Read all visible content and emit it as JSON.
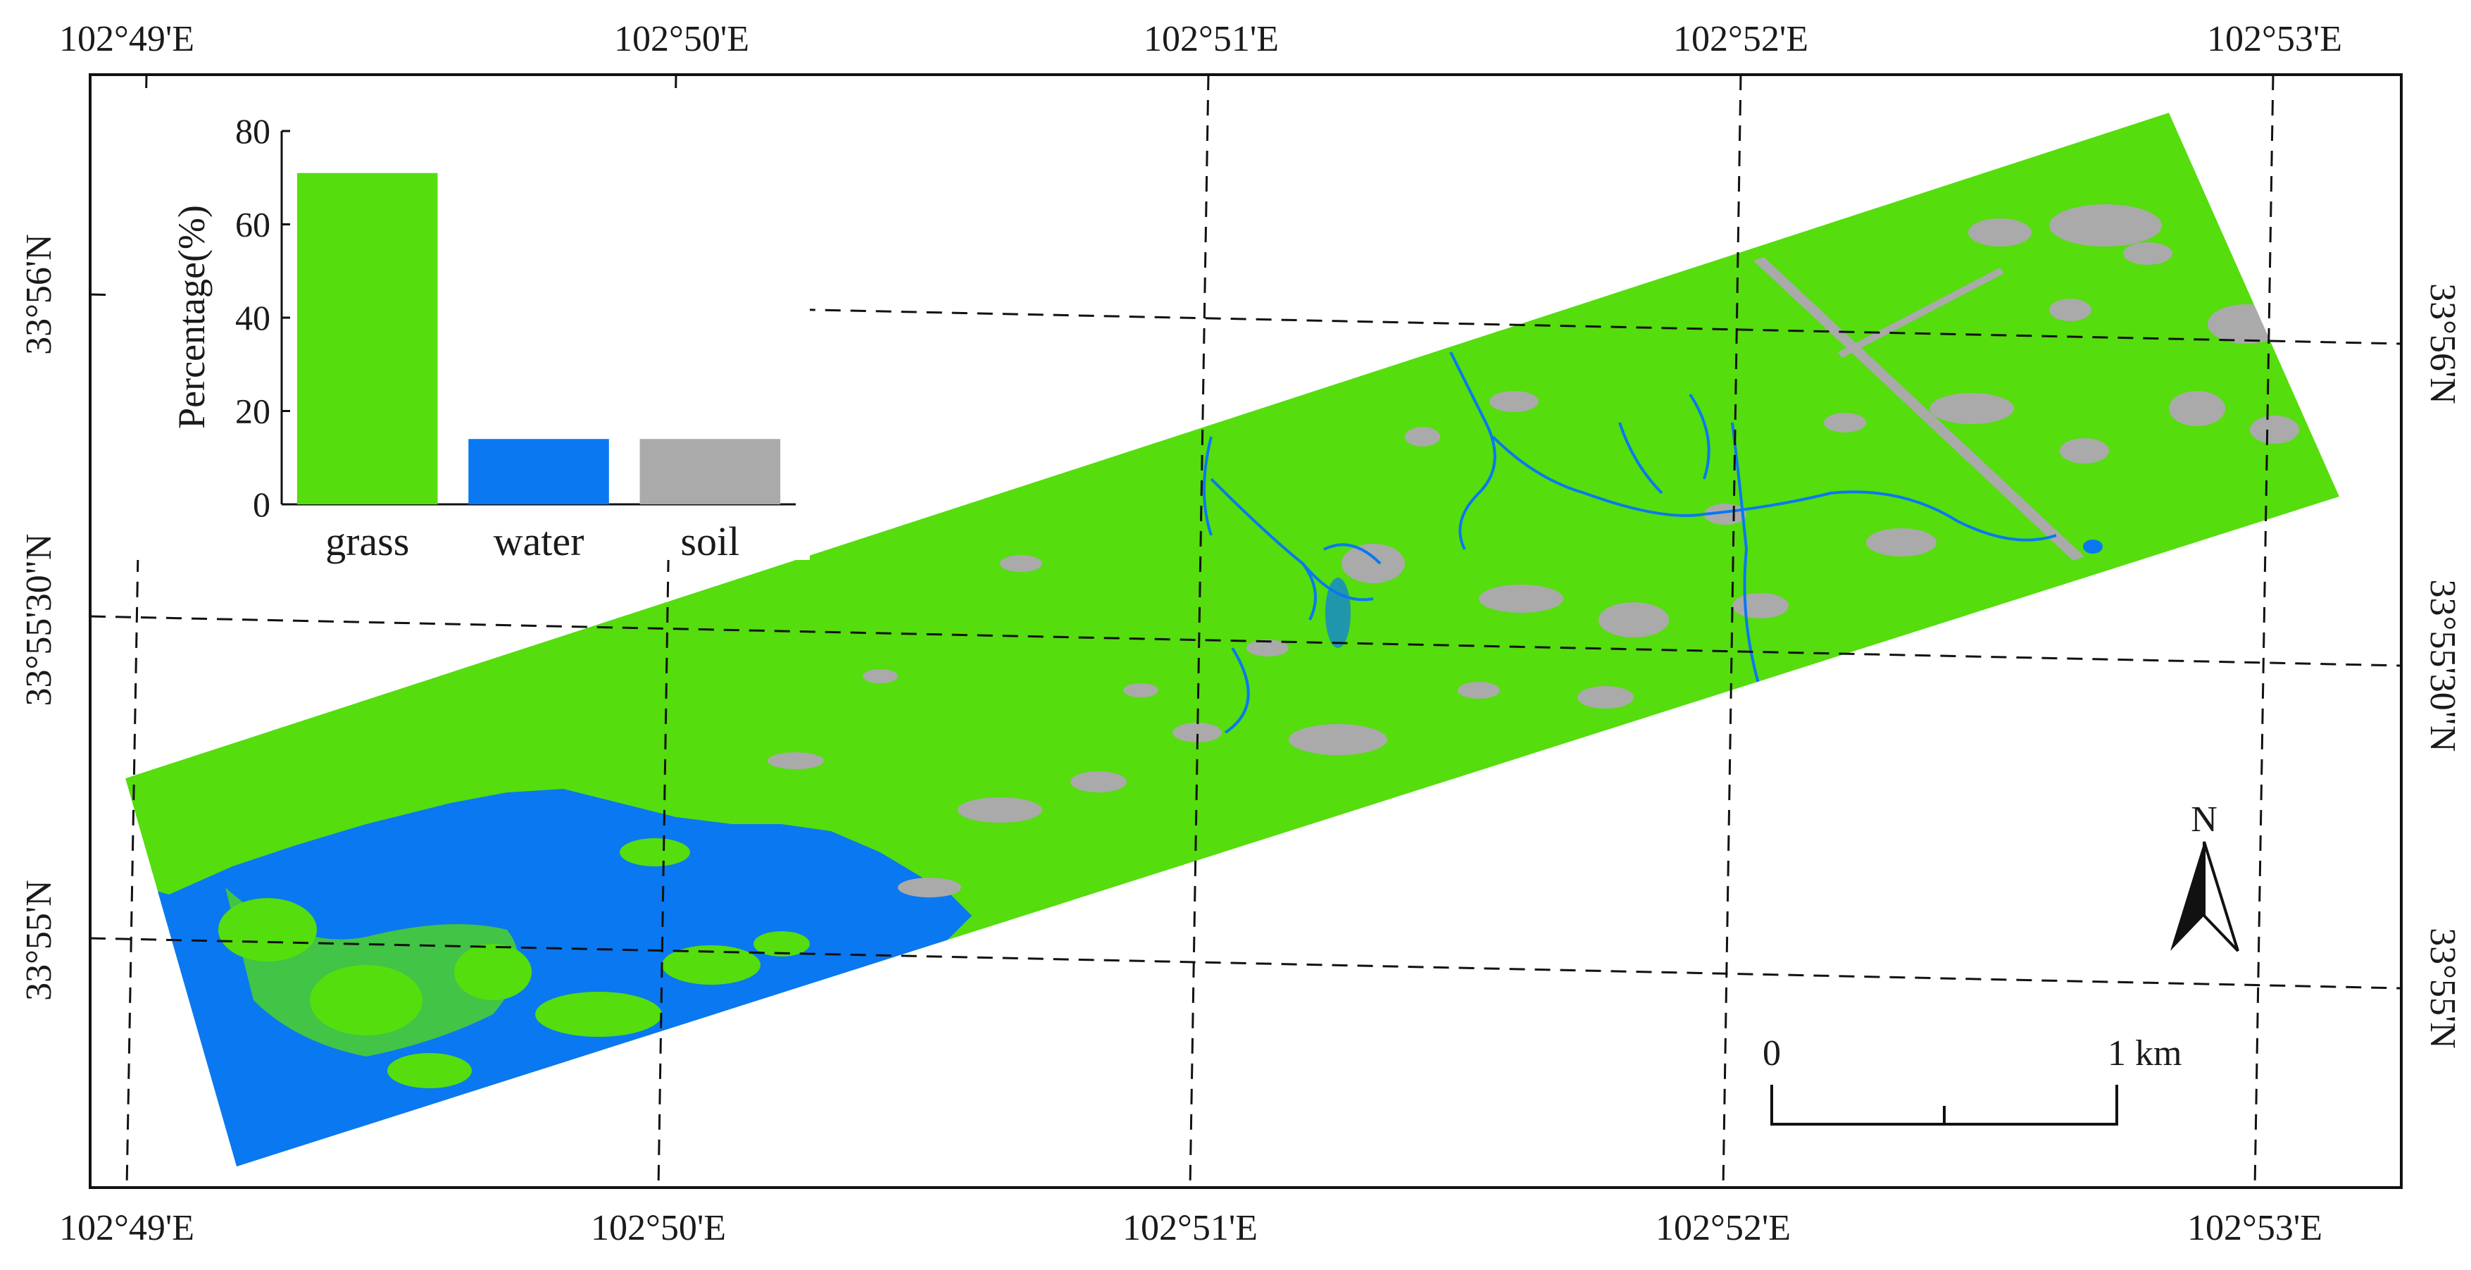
{
  "map": {
    "top_lon_labels": [
      "102°49'E",
      "102°50'E",
      "102°51'E",
      "102°52'E",
      "102°53'E"
    ],
    "bottom_lon_labels": [
      "102°49'E",
      "102°50'E",
      "102°51'E",
      "102°52'E",
      "102°53'E"
    ],
    "left_lat_labels": [
      "33°56'N",
      "33°55'30\"N",
      "33°55'N"
    ],
    "right_lat_labels": [
      "33°56'N",
      "33°55'30\"N",
      "33°55'N"
    ],
    "colors": {
      "grass": "#55dd0e",
      "water": "#0a78f0",
      "soil": "#aaaaaa"
    }
  },
  "north_arrow": {
    "label": "N"
  },
  "scale_bar": {
    "start_label": "0",
    "end_label": "1",
    "unit": "km"
  },
  "chart_data": {
    "type": "bar",
    "categories": [
      "grass",
      "water",
      "soil"
    ],
    "values": [
      71,
      14,
      14
    ],
    "colors": [
      "#55dd0e",
      "#0a78f0",
      "#aaaaaa"
    ],
    "ylabel": "Percentage(%)",
    "yticks": [
      0,
      20,
      40,
      60,
      80
    ],
    "ylim": [
      0,
      80
    ]
  }
}
